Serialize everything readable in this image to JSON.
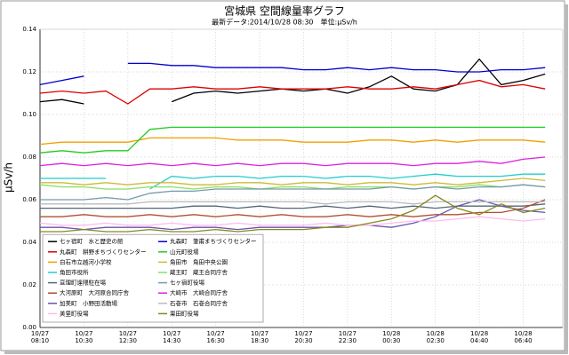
{
  "chart_data": {
    "type": "line",
    "title": "宮城県 空間線量率グラフ",
    "subtitle": "最新データ:2014/10/28 08:30　単位:μSv/h",
    "ylabel": "μSv/h",
    "grid": true,
    "legend": "lower-left",
    "x": [
      0,
      0.5,
      1,
      1.5,
      2,
      2.5,
      3,
      3.5,
      4,
      4.5,
      5,
      5.5,
      6,
      6.5,
      7,
      7.5,
      8,
      8.5,
      9,
      9.5,
      10,
      10.5,
      11,
      11.5
    ],
    "xlim": [
      0,
      11.9
    ],
    "xticks": [
      {
        "value": 0,
        "label": [
          "10/27",
          "08:10"
        ]
      },
      {
        "value": 1,
        "label": [
          "10/27",
          "10:30"
        ]
      },
      {
        "value": 2,
        "label": [
          "10/27",
          "12:30"
        ]
      },
      {
        "value": 3,
        "label": [
          "10/27",
          "14:30"
        ]
      },
      {
        "value": 4,
        "label": [
          "10/27",
          "16:30"
        ]
      },
      {
        "value": 5,
        "label": [
          "10/27",
          "18:30"
        ]
      },
      {
        "value": 6,
        "label": [
          "10/27",
          "20:30"
        ]
      },
      {
        "value": 7,
        "label": [
          "10/27",
          "22:30"
        ]
      },
      {
        "value": 8,
        "label": [
          "10/28",
          "00:30"
        ]
      },
      {
        "value": 9,
        "label": [
          "10/28",
          "02:30"
        ]
      },
      {
        "value": 10,
        "label": [
          "10/28",
          "04:40"
        ]
      },
      {
        "value": 11,
        "label": [
          "10/28",
          "06:40"
        ]
      }
    ],
    "ylim": [
      0,
      0.14
    ],
    "yticks": [
      {
        "value": 0,
        "label": "0.00"
      },
      0.02,
      0.04,
      0.06,
      0.08,
      {
        "value": 0.1,
        "label": "0.10"
      },
      0.12,
      0.14
    ],
    "series": [
      {
        "name": "七ヶ宿町　水と歴史の館",
        "color": "#000000",
        "values": [
          0.106,
          0.107,
          0.105,
          null,
          null,
          null,
          0.106,
          0.11,
          0.111,
          0.11,
          0.111,
          0.112,
          0.111,
          0.112,
          0.11,
          0.113,
          0.118,
          0.112,
          0.111,
          0.114,
          0.126,
          0.114,
          0.116,
          0.119
        ]
      },
      {
        "name": "丸森町　耕野まちづくりセンター",
        "color": "#dd0000",
        "values": [
          0.11,
          0.111,
          0.11,
          0.111,
          0.105,
          0.112,
          0.112,
          0.113,
          0.112,
          0.112,
          0.113,
          0.112,
          0.112,
          0.112,
          0.113,
          0.112,
          0.112,
          0.113,
          0.112,
          0.114,
          0.116,
          0.113,
          0.114,
          0.112
        ]
      },
      {
        "name": "白石市立越河小学校",
        "color": "#f0a000",
        "values": [
          0.086,
          0.087,
          0.087,
          0.087,
          0.087,
          0.089,
          0.089,
          0.089,
          0.089,
          0.088,
          0.088,
          0.088,
          0.087,
          0.087,
          0.087,
          0.088,
          0.088,
          0.087,
          0.088,
          0.087,
          0.088,
          0.088,
          0.088,
          0.087
        ]
      },
      {
        "name": "角田市役所",
        "color": "#22cccc",
        "values": [
          0.07,
          0.07,
          0.07,
          0.07,
          null,
          0.065,
          0.071,
          0.07,
          0.071,
          0.071,
          0.07,
          0.071,
          0.071,
          0.07,
          0.071,
          0.071,
          0.07,
          0.071,
          0.072,
          0.071,
          0.071,
          0.071,
          0.072,
          0.072
        ]
      },
      {
        "name": "亘理町逢隈駐在場",
        "color": "#556677",
        "values": [
          0.056,
          0.056,
          0.056,
          0.056,
          0.056,
          0.056,
          0.056,
          0.057,
          0.057,
          0.056,
          0.057,
          0.056,
          0.056,
          0.057,
          0.056,
          0.057,
          0.056,
          0.057,
          0.056,
          0.057,
          0.057,
          0.057,
          0.057,
          0.058
        ]
      },
      {
        "name": "大河原町　大河原合同庁舎",
        "color": "#b05030",
        "values": [
          0.052,
          0.052,
          0.053,
          0.052,
          0.052,
          0.053,
          0.052,
          0.053,
          0.052,
          0.053,
          0.052,
          0.053,
          0.052,
          0.052,
          0.053,
          0.052,
          0.053,
          0.052,
          0.053,
          0.053,
          0.054,
          0.054,
          0.056,
          0.06
        ]
      },
      {
        "name": "加美町　小野田活動場",
        "color": "#6655aa",
        "values": [
          0.047,
          0.047,
          0.046,
          0.047,
          0.047,
          0.047,
          0.046,
          0.047,
          0.047,
          0.046,
          0.047,
          0.047,
          0.047,
          0.047,
          0.048,
          0.048,
          0.047,
          0.049,
          0.052,
          0.057,
          0.06,
          0.057,
          0.055,
          0.054
        ]
      },
      {
        "name": "美里町役場",
        "color": "#ffbbee",
        "values": [
          0.049,
          0.048,
          0.048,
          0.049,
          0.048,
          0.048,
          0.049,
          0.048,
          0.048,
          0.049,
          0.048,
          0.048,
          0.048,
          0.049,
          0.048,
          0.048,
          0.049,
          0.05,
          0.05,
          0.051,
          0.052,
          0.051,
          0.05,
          0.051
        ]
      },
      {
        "name": "丸森町　筆甫まちづくりセンター",
        "color": "#0000cc",
        "values": [
          0.114,
          0.116,
          0.118,
          null,
          0.124,
          0.124,
          0.123,
          0.123,
          0.122,
          0.122,
          0.122,
          0.122,
          0.121,
          0.121,
          0.122,
          0.121,
          0.122,
          0.121,
          0.121,
          0.12,
          0.12,
          0.121,
          0.121,
          0.122
        ]
      },
      {
        "name": "山元町役場",
        "color": "#22cc22",
        "values": [
          0.082,
          0.083,
          0.082,
          0.083,
          0.083,
          0.093,
          0.094,
          0.094,
          0.094,
          0.094,
          0.094,
          0.094,
          0.094,
          0.094,
          0.094,
          0.094,
          0.094,
          0.094,
          0.094,
          0.094,
          0.094,
          0.094,
          0.094,
          0.094
        ]
      },
      {
        "name": "角田市　角田中央公園",
        "color": "#ccbb33",
        "values": [
          0.068,
          0.068,
          0.067,
          0.068,
          0.067,
          0.068,
          0.068,
          0.067,
          0.067,
          0.068,
          0.068,
          0.067,
          0.068,
          0.068,
          0.067,
          0.068,
          0.068,
          0.067,
          0.068,
          0.067,
          0.068,
          0.069,
          0.07,
          0.069
        ]
      },
      {
        "name": "蔵王町　蔵王合同庁舎",
        "color": "#88dd66",
        "values": [
          0.067,
          0.066,
          0.066,
          0.065,
          0.065,
          0.066,
          0.066,
          0.065,
          0.066,
          0.066,
          0.065,
          0.066,
          0.066,
          0.065,
          0.066,
          0.066,
          0.066,
          0.065,
          0.066,
          0.066,
          0.067,
          0.066,
          0.067,
          0.066
        ]
      },
      {
        "name": "七ヶ宿町役場",
        "color": "#7799aa",
        "values": [
          0.06,
          0.06,
          0.06,
          0.061,
          0.06,
          0.063,
          0.064,
          0.064,
          0.065,
          0.065,
          0.065,
          0.065,
          0.065,
          0.065,
          0.065,
          0.065,
          0.066,
          0.065,
          0.066,
          0.065,
          0.066,
          0.066,
          0.067,
          0.066
        ]
      },
      {
        "name": "大崎市　大崎合同庁舎",
        "color": "#dd22dd",
        "values": [
          0.076,
          0.077,
          0.076,
          0.077,
          0.076,
          0.077,
          0.076,
          0.077,
          0.076,
          0.077,
          0.076,
          0.077,
          0.077,
          0.076,
          0.077,
          0.077,
          0.077,
          0.076,
          0.077,
          0.077,
          0.078,
          0.077,
          0.079,
          0.08
        ]
      },
      {
        "name": "石巻市　石巻合同庁舎",
        "color": "#bbbbbb",
        "values": [
          0.058,
          0.058,
          0.058,
          0.058,
          0.058,
          0.059,
          0.059,
          0.059,
          0.059,
          0.059,
          0.059,
          0.059,
          0.059,
          0.058,
          0.059,
          0.059,
          0.059,
          0.058,
          0.059,
          0.059,
          0.059,
          0.059,
          0.059,
          0.059
        ]
      },
      {
        "name": "栗田町役場",
        "color": "#888822",
        "values": [
          0.045,
          0.045,
          0.046,
          0.045,
          0.045,
          0.046,
          0.045,
          0.045,
          0.046,
          0.045,
          0.046,
          0.046,
          0.046,
          0.047,
          0.047,
          0.049,
          0.051,
          0.055,
          0.062,
          0.056,
          0.053,
          0.058,
          0.054,
          0.056
        ]
      }
    ]
  }
}
